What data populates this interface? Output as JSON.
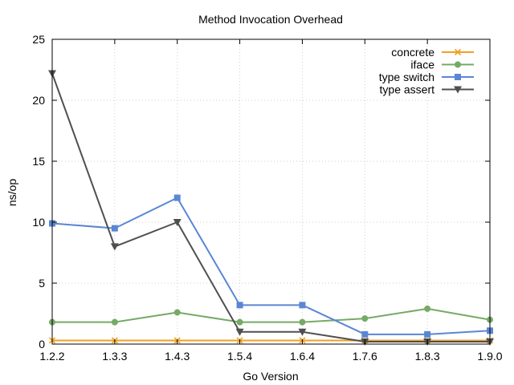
{
  "chart_data": {
    "type": "line",
    "title": "Method Invocation Overhead",
    "xlabel": "Go Version",
    "ylabel": "ns/op",
    "categories": [
      "1.2.2",
      "1.3.3",
      "1.4.3",
      "1.5.4",
      "1.6.4",
      "1.7.6",
      "1.8.3",
      "1.9.0"
    ],
    "ylim": [
      0,
      25
    ],
    "yticks": [
      0,
      5,
      10,
      15,
      20,
      25
    ],
    "grid": true,
    "legend_position": "top-right",
    "series": [
      {
        "name": "concrete",
        "color": "#f0a020",
        "marker": "x",
        "values": [
          0.3,
          0.3,
          0.3,
          0.3,
          0.3,
          0.3,
          0.3,
          0.3
        ]
      },
      {
        "name": "iface",
        "color": "#76aa66",
        "marker": "circle",
        "values": [
          1.8,
          1.8,
          2.6,
          1.8,
          1.8,
          2.1,
          2.9,
          2.0
        ]
      },
      {
        "name": "type switch",
        "color": "#5b86d4",
        "marker": "square",
        "values": [
          9.9,
          9.5,
          12.0,
          3.2,
          3.2,
          0.8,
          0.8,
          1.1
        ]
      },
      {
        "name": "type assert",
        "color": "#4f4f4f",
        "marker": "triangle-down",
        "values": [
          22.2,
          8.0,
          10.0,
          1.0,
          1.0,
          0.2,
          0.2,
          0.2
        ]
      }
    ]
  }
}
